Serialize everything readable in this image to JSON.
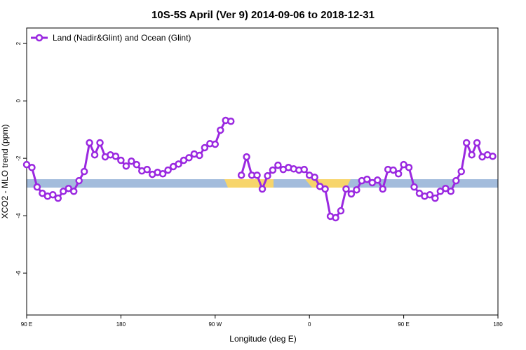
{
  "chart_data": {
    "type": "line",
    "title": "10S-5S April (Ver 9)   2014-09-06 to 2018-12-31",
    "xlabel": "Longitude (deg E)",
    "ylabel": "XCO2 - MLO trend (ppm)",
    "x": [
      90,
      95,
      100,
      105,
      110,
      115,
      120,
      125,
      130,
      135,
      140,
      145,
      150,
      155,
      160,
      165,
      170,
      175,
      180,
      185,
      190,
      195,
      200,
      205,
      210,
      215,
      220,
      225,
      230,
      235,
      240,
      245,
      250,
      255,
      260,
      265,
      270,
      275,
      280,
      285,
      290,
      295,
      300,
      305,
      310,
      315,
      320,
      325,
      330,
      335,
      340,
      345,
      350,
      355,
      360,
      365,
      370,
      375,
      380,
      385,
      390,
      395,
      400,
      405,
      410,
      415,
      420,
      425,
      430,
      435,
      440,
      445,
      450,
      455,
      460,
      465,
      470,
      475,
      480,
      485,
      490,
      495,
      500,
      505,
      510,
      515,
      520,
      525,
      530,
      535
    ],
    "series": [
      {
        "name": "Land (Nadir&Glint) and Ocean (Glint)",
        "color": "#9a28e0",
        "values": [
          -2.22,
          -2.32,
          -3.0,
          -3.22,
          -3.32,
          -3.27,
          -3.39,
          -3.15,
          -3.05,
          -3.15,
          -2.78,
          -2.46,
          -1.46,
          -1.88,
          -1.46,
          -1.95,
          -1.88,
          -1.93,
          -2.07,
          -2.27,
          -2.1,
          -2.22,
          -2.44,
          -2.39,
          -2.56,
          -2.49,
          -2.54,
          -2.41,
          -2.29,
          -2.2,
          -2.07,
          -1.98,
          -1.85,
          -1.9,
          -1.63,
          -1.49,
          -1.51,
          -1.02,
          -0.68,
          -0.71,
          null,
          -2.59,
          -1.95,
          -2.59,
          -2.59,
          -3.07,
          -2.61,
          -2.41,
          -2.24,
          -2.39,
          -2.32,
          -2.37,
          -2.41,
          -2.39,
          -2.59,
          -2.66,
          -2.98,
          -3.07,
          -4.02,
          -4.07,
          -3.83,
          -3.07,
          -3.24,
          -3.1,
          -2.78,
          -2.73,
          -2.85,
          -2.76,
          -3.07,
          -2.39,
          -2.41,
          -2.54,
          -2.22,
          -2.32,
          -3.0,
          -3.22,
          -3.32,
          -3.27,
          -3.39,
          -3.15,
          -3.05,
          -3.15,
          -2.78,
          -2.46,
          -1.46,
          -1.88,
          -1.46,
          -1.95,
          -1.88,
          -1.93
        ]
      }
    ],
    "xlim": [
      90,
      540
    ],
    "xticks": [
      {
        "value": 90,
        "label": "90 E"
      },
      180,
      {
        "value": 270,
        "label": "90 W"
      },
      {
        "value": 360,
        "label": "0"
      },
      {
        "value": 450,
        "label": "90 E"
      },
      {
        "value": 540,
        "label": "180"
      }
    ],
    "ylim": [
      -7.46,
      2.54
    ],
    "yticks": [
      2,
      0,
      -2,
      -4,
      -6
    ],
    "legend": "top-left"
  }
}
